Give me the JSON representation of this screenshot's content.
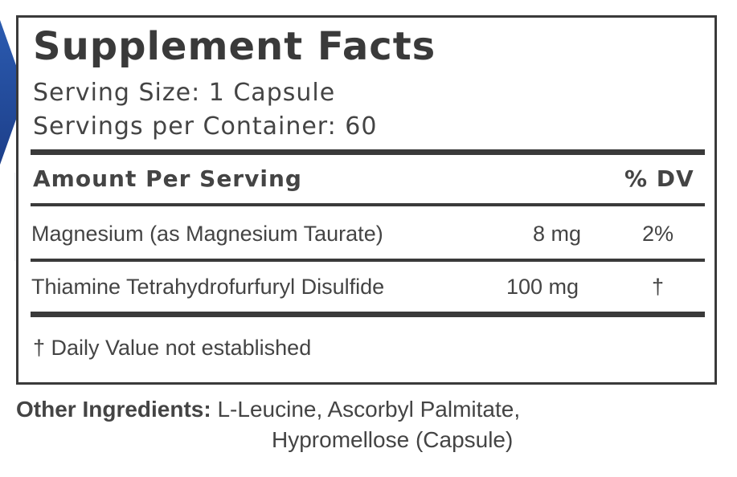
{
  "title": "Supplement Facts",
  "serving_size": "Serving Size: 1 Capsule",
  "servings_per_container": "Servings per Container: 60",
  "header": {
    "amount": "Amount Per Serving",
    "dv": "% DV"
  },
  "rows": [
    {
      "name": "Magnesium (as Magnesium Taurate)",
      "amount": "8 mg",
      "dv": "2%"
    },
    {
      "name": "Thiamine Tetrahydrofurfuryl Disulfide",
      "amount": "100 mg",
      "dv": "†"
    }
  ],
  "footnote": "† Daily Value not established",
  "other": {
    "label": "Other Ingredients:",
    "line1": "L-Leucine, Ascorbyl Palmitate,",
    "line2": "Hypromellose (Capsule)"
  },
  "colors": {
    "accent": "#1f4a99",
    "text": "#3d3d3d"
  }
}
